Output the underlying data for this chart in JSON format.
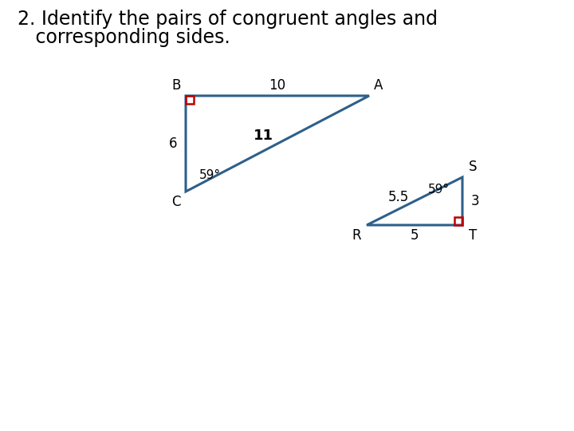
{
  "title_line1": "2. Identify the pairs of congruent angles and",
  "title_line2": "   corresponding sides.",
  "title_fontsize": 17,
  "bg_color": "#ffffff",
  "tri_color": "#2e5f8a",
  "tri_linewidth": 2.2,
  "ra_color": "#c00000",
  "ra_size": 10,
  "t1": {
    "B": [
      233,
      420
    ],
    "A": [
      463,
      420
    ],
    "C": [
      233,
      300
    ]
  },
  "t2": {
    "R": [
      460,
      258
    ],
    "T": [
      580,
      258
    ],
    "S": [
      580,
      318
    ]
  },
  "label_fontsize": 12
}
